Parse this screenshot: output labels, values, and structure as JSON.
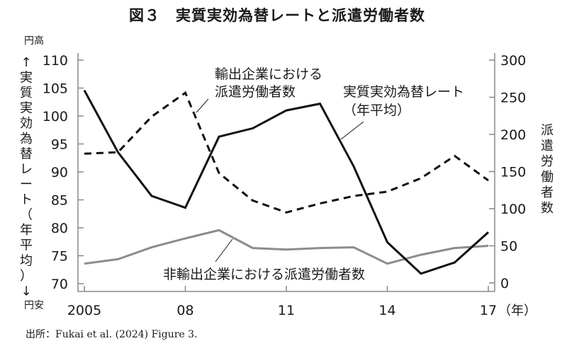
{
  "title": "図３　実質実効為替レートと派遣労働者数",
  "source": "出所：Fukai et al. (2024) Figure 3.",
  "left_axis": {
    "top_label": "円高",
    "bottom_label": "円安",
    "title_chars": [
      "↑",
      "実",
      "質",
      "実",
      "効",
      "為",
      "替",
      "レ",
      "ー",
      "ト",
      "（",
      "年",
      "平",
      "均",
      "）",
      "↓"
    ],
    "ticks": [
      "110",
      "105",
      "100",
      "95",
      "90",
      "85",
      "80",
      "75",
      "70"
    ]
  },
  "right_axis": {
    "title_chars": [
      "派",
      "遣",
      "労",
      "働",
      "者",
      "数"
    ],
    "ticks": [
      "300",
      "250",
      "200",
      "150",
      "100",
      "50",
      "0"
    ]
  },
  "x_axis": {
    "ticks": [
      "2005",
      "08",
      "11",
      "14",
      "17"
    ],
    "unit": "（年）"
  },
  "annotations": {
    "export_line1": "輸出企業における",
    "export_line2": "派遣労働者数",
    "rate_line1": "実質実効為替レート",
    "rate_line2": "（年平均）",
    "nonexport": "非輸出企業における派遣労働者数"
  },
  "colors": {
    "rate": "#111111",
    "export": "#111111",
    "nonexport": "#8c8c8c",
    "axis": "#888888"
  },
  "chart_data": {
    "type": "line",
    "title": "図３　実質実効為替レートと派遣労働者数",
    "x": [
      2005,
      2006,
      2007,
      2008,
      2009,
      2010,
      2011,
      2012,
      2013,
      2014,
      2015,
      2016,
      2017
    ],
    "xlabel": "（年）",
    "ylabel_left": "実質実効為替レート（年平均）",
    "ylabel_right": "派遣労働者数",
    "ylim_left": [
      70,
      110
    ],
    "ylim_right": [
      0,
      300
    ],
    "grid": false,
    "series": [
      {
        "name": "実質実効為替レート（年平均）",
        "axis": "left",
        "style": "solid-black",
        "values": [
          104.6,
          93.5,
          85.7,
          83.6,
          96.3,
          97.8,
          101.0,
          102.2,
          91.0,
          77.4,
          71.8,
          73.8,
          79.2
        ]
      },
      {
        "name": "輸出企業における派遣労働者数",
        "axis": "right",
        "style": "dashed-black",
        "values": [
          174,
          176,
          224,
          256,
          148,
          111,
          95,
          107,
          117,
          123,
          141,
          171,
          138
        ]
      },
      {
        "name": "非輸出企業における派遣労働者数",
        "axis": "right",
        "style": "solid-gray",
        "values": [
          26,
          32,
          48,
          60,
          71,
          47,
          45,
          47,
          48,
          26,
          38,
          47,
          50
        ]
      }
    ]
  }
}
